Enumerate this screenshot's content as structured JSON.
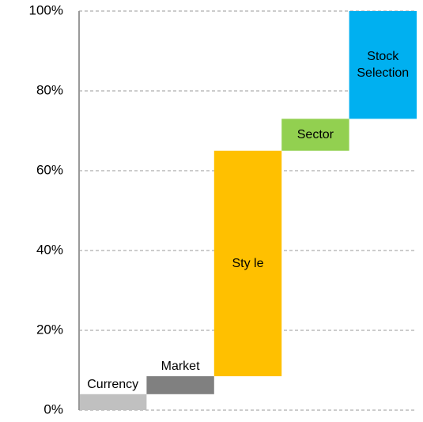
{
  "chart_data": {
    "type": "waterfall",
    "categories": [
      "Currency",
      "Market",
      "Sty le",
      "Sector",
      "Stock Selection"
    ],
    "values": [
      4,
      4.5,
      56.5,
      8,
      27
    ],
    "colors": [
      "#c0c0c0",
      "#808080",
      "#ffc000",
      "#92d050",
      "#00b0f0"
    ],
    "ylim": [
      0,
      100
    ],
    "yticks": [
      {
        "value": 0,
        "label": "0%"
      },
      {
        "value": 20,
        "label": "20%"
      },
      {
        "value": 40,
        "label": "40%"
      },
      {
        "value": 60,
        "label": "60%"
      },
      {
        "value": 80,
        "label": "80%"
      },
      {
        "value": 100,
        "label": "100%"
      }
    ],
    "grid": true
  }
}
